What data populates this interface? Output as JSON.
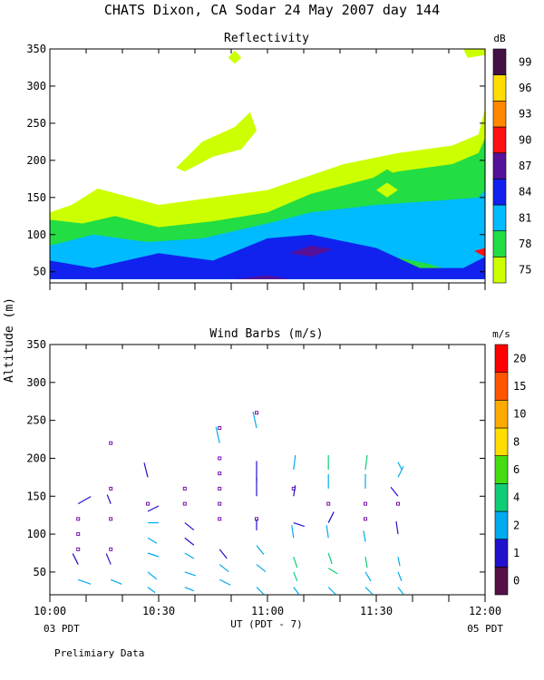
{
  "title": "CHATS Dixon, CA  Sodar  24 May 2007  day 144",
  "ylabel": "Altitude (m)",
  "xlabel": "UT  (PDT - 7)",
  "x_left_date": "03 PDT",
  "x_right_date": "05 PDT",
  "footnote": "Prelimiary Data",
  "chart_data": [
    {
      "type": "heatmap",
      "title": "Reflectivity",
      "colorbar_title": "dB",
      "colorbar_levels": [
        75,
        78,
        81,
        84,
        87,
        90,
        93,
        96,
        99
      ],
      "colorbar_colors": [
        "#ccff00",
        "#22dd44",
        "#00bbff",
        "#1122ee",
        "#551199",
        "#ff1111",
        "#ff8800",
        "#ffdd00",
        "#441144"
      ],
      "ylim": [
        35,
        350
      ],
      "yticks": [
        50,
        100,
        150,
        200,
        250,
        300,
        350
      ],
      "regions": [
        {
          "color": "#ccff00",
          "points": [
            [
              10.0,
              40
            ],
            [
              10.0,
              130
            ],
            [
              10.1,
              140
            ],
            [
              10.22,
              162
            ],
            [
              10.5,
              140
            ],
            [
              11.0,
              160
            ],
            [
              11.35,
              195
            ],
            [
              11.6,
              210
            ],
            [
              11.85,
              220
            ],
            [
              11.97,
              235
            ],
            [
              12.0,
              270
            ],
            [
              12.0,
              40
            ]
          ]
        },
        {
          "color": "#ccff00",
          "points": [
            [
              10.58,
              190
            ],
            [
              10.7,
              225
            ],
            [
              10.85,
              245
            ],
            [
              10.92,
              265
            ],
            [
              10.95,
              240
            ],
            [
              10.88,
              215
            ],
            [
              10.75,
              205
            ],
            [
              10.62,
              185
            ]
          ]
        },
        {
          "color": "#ccff00",
          "points": [
            [
              11.92,
              338
            ],
            [
              12.0,
              342
            ],
            [
              12.0,
              352
            ],
            [
              11.9,
              350
            ]
          ]
        },
        {
          "color": "#ccff00",
          "points": [
            [
              10.82,
              338
            ],
            [
              10.85,
              348
            ],
            [
              10.88,
              338
            ],
            [
              10.85,
              330
            ]
          ]
        },
        {
          "color": "#22dd44",
          "points": [
            [
              10.0,
              40
            ],
            [
              10.0,
              120
            ],
            [
              10.15,
              115
            ],
            [
              10.3,
              125
            ],
            [
              10.5,
              110
            ],
            [
              10.75,
              118
            ],
            [
              11.0,
              130
            ],
            [
              11.2,
              155
            ],
            [
              11.4,
              170
            ],
            [
              11.6,
              185
            ],
            [
              11.85,
              195
            ],
            [
              11.97,
              210
            ],
            [
              12.0,
              230
            ],
            [
              12.0,
              40
            ]
          ]
        },
        {
          "color": "#00bbff",
          "points": [
            [
              10.0,
              40
            ],
            [
              10.0,
              85
            ],
            [
              10.2,
              100
            ],
            [
              10.45,
              90
            ],
            [
              10.7,
              95
            ],
            [
              11.0,
              115
            ],
            [
              11.2,
              130
            ],
            [
              11.5,
              140
            ],
            [
              11.75,
              145
            ],
            [
              11.97,
              150
            ],
            [
              12.0,
              160
            ],
            [
              12.0,
              40
            ]
          ]
        },
        {
          "color": "#22dd44",
          "points": [
            [
              11.45,
              170
            ],
            [
              11.55,
              188
            ],
            [
              11.65,
              170
            ],
            [
              11.55,
              155
            ]
          ]
        },
        {
          "color": "#ccff00",
          "points": [
            [
              11.5,
              160
            ],
            [
              11.55,
              170
            ],
            [
              11.6,
              160
            ],
            [
              11.55,
              150
            ]
          ]
        },
        {
          "color": "#22dd44",
          "points": [
            [
              11.0,
              55
            ],
            [
              11.2,
              75
            ],
            [
              11.5,
              75
            ],
            [
              11.75,
              60
            ],
            [
              11.85,
              50
            ],
            [
              11.5,
              45
            ],
            [
              11.2,
              45
            ]
          ]
        },
        {
          "color": "#1122ee",
          "points": [
            [
              10.0,
              40
            ],
            [
              10.0,
              65
            ],
            [
              10.2,
              55
            ],
            [
              10.5,
              75
            ],
            [
              10.75,
              65
            ],
            [
              11.0,
              95
            ],
            [
              11.2,
              100
            ],
            [
              11.5,
              82
            ],
            [
              11.7,
              55
            ],
            [
              11.9,
              55
            ],
            [
              12.0,
              70
            ],
            [
              12.0,
              40
            ]
          ]
        },
        {
          "color": "#551199",
          "points": [
            [
              11.1,
              75
            ],
            [
              11.2,
              85
            ],
            [
              11.3,
              80
            ],
            [
              11.2,
              70
            ]
          ]
        },
        {
          "color": "#551199",
          "points": [
            [
              10.85,
              40
            ],
            [
              11.0,
              45
            ],
            [
              11.1,
              40
            ]
          ]
        },
        {
          "color": "#ff1111",
          "points": [
            [
              11.95,
              78
            ],
            [
              12.0,
              82
            ],
            [
              12.0,
              70
            ]
          ]
        }
      ]
    },
    {
      "type": "scatter",
      "title": "Wind Barbs (m/s)",
      "colorbar_title": "m/s",
      "colorbar_levels": [
        0,
        1,
        2,
        4,
        6,
        8,
        10,
        15,
        20
      ],
      "colorbar_colors": [
        "#551144",
        "#2211cc",
        "#00aaee",
        "#11cc77",
        "#44dd11",
        "#ffdd00",
        "#ffaa00",
        "#ff5500",
        "#ff0000"
      ],
      "ylim": [
        20,
        350
      ],
      "yticks": [
        50,
        100,
        150,
        200,
        250,
        300,
        350
      ],
      "xlim": [
        10.0,
        12.0
      ],
      "xtick_labels": [
        "10:00",
        "10:30",
        "11:00",
        "11:30",
        "12:00"
      ],
      "calm_points": [
        {
          "t": 10.13,
          "z": 80
        },
        {
          "t": 10.13,
          "z": 100
        },
        {
          "t": 10.13,
          "z": 120
        },
        {
          "t": 10.28,
          "z": 80
        },
        {
          "t": 10.28,
          "z": 120
        },
        {
          "t": 10.28,
          "z": 160
        },
        {
          "t": 10.28,
          "z": 220
        },
        {
          "t": 10.45,
          "z": 140
        },
        {
          "t": 10.62,
          "z": 140
        },
        {
          "t": 10.62,
          "z": 160
        },
        {
          "t": 10.78,
          "z": 120
        },
        {
          "t": 10.78,
          "z": 140
        },
        {
          "t": 10.78,
          "z": 160
        },
        {
          "t": 10.78,
          "z": 180
        },
        {
          "t": 10.78,
          "z": 200
        },
        {
          "t": 10.78,
          "z": 240
        },
        {
          "t": 10.95,
          "z": 120
        },
        {
          "t": 10.95,
          "z": 260
        },
        {
          "t": 11.12,
          "z": 160
        },
        {
          "t": 11.28,
          "z": 140
        },
        {
          "t": 11.45,
          "z": 120
        },
        {
          "t": 11.45,
          "z": 140
        },
        {
          "t": 11.6,
          "z": 140
        }
      ],
      "barbs": [
        {
          "t": 10.13,
          "z": 40,
          "dx": 14,
          "dy": 5,
          "c": "#00aaee"
        },
        {
          "t": 10.13,
          "z": 60,
          "dx": -6,
          "dy": -12,
          "c": "#2211cc"
        },
        {
          "t": 10.13,
          "z": 140,
          "dx": 14,
          "dy": -8,
          "c": "#2211cc"
        },
        {
          "t": 10.28,
          "z": 40,
          "dx": 12,
          "dy": 5,
          "c": "#00aaee"
        },
        {
          "t": 10.28,
          "z": 60,
          "dx": -5,
          "dy": -12,
          "c": "#2211cc"
        },
        {
          "t": 10.28,
          "z": 140,
          "dx": -4,
          "dy": -10,
          "c": "#2211cc"
        },
        {
          "t": 10.45,
          "z": 30,
          "dx": 8,
          "dy": 6,
          "c": "#00aaee"
        },
        {
          "t": 10.45,
          "z": 50,
          "dx": 10,
          "dy": 8,
          "c": "#00aaee"
        },
        {
          "t": 10.45,
          "z": 75,
          "dx": 12,
          "dy": 4,
          "c": "#00aaee"
        },
        {
          "t": 10.45,
          "z": 95,
          "dx": 10,
          "dy": 6,
          "c": "#00aaee"
        },
        {
          "t": 10.45,
          "z": 115,
          "dx": 12,
          "dy": 0,
          "c": "#00aaee"
        },
        {
          "t": 10.45,
          "z": 130,
          "dx": 12,
          "dy": -6,
          "c": "#2211cc"
        },
        {
          "t": 10.45,
          "z": 175,
          "dx": -4,
          "dy": -16,
          "c": "#2211cc"
        },
        {
          "t": 10.62,
          "z": 30,
          "dx": 10,
          "dy": 4,
          "c": "#00aaee"
        },
        {
          "t": 10.62,
          "z": 50,
          "dx": 12,
          "dy": 4,
          "c": "#00aaee"
        },
        {
          "t": 10.62,
          "z": 75,
          "dx": 10,
          "dy": 6,
          "c": "#00aaee"
        },
        {
          "t": 10.62,
          "z": 95,
          "dx": 10,
          "dy": 8,
          "c": "#2211cc"
        },
        {
          "t": 10.62,
          "z": 115,
          "dx": 10,
          "dy": 8,
          "c": "#2211cc"
        },
        {
          "t": 10.78,
          "z": 40,
          "dx": 12,
          "dy": 6,
          "c": "#00aaee"
        },
        {
          "t": 10.78,
          "z": 60,
          "dx": 10,
          "dy": 8,
          "c": "#00aaee"
        },
        {
          "t": 10.78,
          "z": 80,
          "dx": 8,
          "dy": 10,
          "c": "#2211cc"
        },
        {
          "t": 10.78,
          "z": 220,
          "dx": -4,
          "dy": -18,
          "c": "#00aaee"
        },
        {
          "t": 10.95,
          "z": 30,
          "dx": 8,
          "dy": 8,
          "c": "#00aaee"
        },
        {
          "t": 10.95,
          "z": 60,
          "dx": 10,
          "dy": 8,
          "c": "#00aaee"
        },
        {
          "t": 10.95,
          "z": 85,
          "dx": 8,
          "dy": 10,
          "c": "#00aaee"
        },
        {
          "t": 10.95,
          "z": 105,
          "dx": 0,
          "dy": -12,
          "c": "#2211cc"
        },
        {
          "t": 10.95,
          "z": 150,
          "dx": 0,
          "dy": -20,
          "c": "#2211cc"
        },
        {
          "t": 10.95,
          "z": 170,
          "dx": 0,
          "dy": -22,
          "c": "#2211cc"
        },
        {
          "t": 10.95,
          "z": 240,
          "dx": -4,
          "dy": -18,
          "c": "#00aaee"
        },
        {
          "t": 11.12,
          "z": 30,
          "dx": 6,
          "dy": 8,
          "c": "#00aaee"
        },
        {
          "t": 11.12,
          "z": 50,
          "dx": 4,
          "dy": 10,
          "c": "#11cc77"
        },
        {
          "t": 11.12,
          "z": 70,
          "dx": 4,
          "dy": 12,
          "c": "#11cc77"
        },
        {
          "t": 11.12,
          "z": 95,
          "dx": -2,
          "dy": -14,
          "c": "#00aaee"
        },
        {
          "t": 11.12,
          "z": 115,
          "dx": 12,
          "dy": 4,
          "c": "#2211cc"
        },
        {
          "t": 11.12,
          "z": 150,
          "dx": 2,
          "dy": -12,
          "c": "#2211cc"
        },
        {
          "t": 11.12,
          "z": 185,
          "dx": 2,
          "dy": -16,
          "c": "#00aaee"
        },
        {
          "t": 11.28,
          "z": 30,
          "dx": 8,
          "dy": 8,
          "c": "#00aaee"
        },
        {
          "t": 11.28,
          "z": 55,
          "dx": 10,
          "dy": 6,
          "c": "#11cc77"
        },
        {
          "t": 11.28,
          "z": 75,
          "dx": 4,
          "dy": 12,
          "c": "#11cc77"
        },
        {
          "t": 11.28,
          "z": 95,
          "dx": -2,
          "dy": -14,
          "c": "#00aaee"
        },
        {
          "t": 11.28,
          "z": 115,
          "dx": 6,
          "dy": -12,
          "c": "#2211cc"
        },
        {
          "t": 11.28,
          "z": 160,
          "dx": 0,
          "dy": -16,
          "c": "#00aaee"
        },
        {
          "t": 11.28,
          "z": 185,
          "dx": 0,
          "dy": -16,
          "c": "#11cc77"
        },
        {
          "t": 11.45,
          "z": 30,
          "dx": 8,
          "dy": 8,
          "c": "#00aaee"
        },
        {
          "t": 11.45,
          "z": 50,
          "dx": 6,
          "dy": 10,
          "c": "#00aaee"
        },
        {
          "t": 11.45,
          "z": 70,
          "dx": 2,
          "dy": 12,
          "c": "#11cc77"
        },
        {
          "t": 11.45,
          "z": 90,
          "dx": -2,
          "dy": -12,
          "c": "#00aaee"
        },
        {
          "t": 11.45,
          "z": 160,
          "dx": 0,
          "dy": -16,
          "c": "#00aaee"
        },
        {
          "t": 11.45,
          "z": 185,
          "dx": 2,
          "dy": -16,
          "c": "#11cc77"
        },
        {
          "t": 11.6,
          "z": 30,
          "dx": 6,
          "dy": 8,
          "c": "#00aaee"
        },
        {
          "t": 11.6,
          "z": 50,
          "dx": 4,
          "dy": 10,
          "c": "#00aaee"
        },
        {
          "t": 11.6,
          "z": 70,
          "dx": 2,
          "dy": 10,
          "c": "#00aaee"
        },
        {
          "t": 11.6,
          "z": 100,
          "dx": -2,
          "dy": -14,
          "c": "#2211cc"
        },
        {
          "t": 11.6,
          "z": 150,
          "dx": -8,
          "dy": -10,
          "c": "#2211cc"
        },
        {
          "t": 11.6,
          "z": 175,
          "dx": 6,
          "dy": -12,
          "c": "#00aaee"
        },
        {
          "t": 11.6,
          "z": 195,
          "dx": 4,
          "dy": 8,
          "c": "#00aaee"
        }
      ]
    }
  ]
}
